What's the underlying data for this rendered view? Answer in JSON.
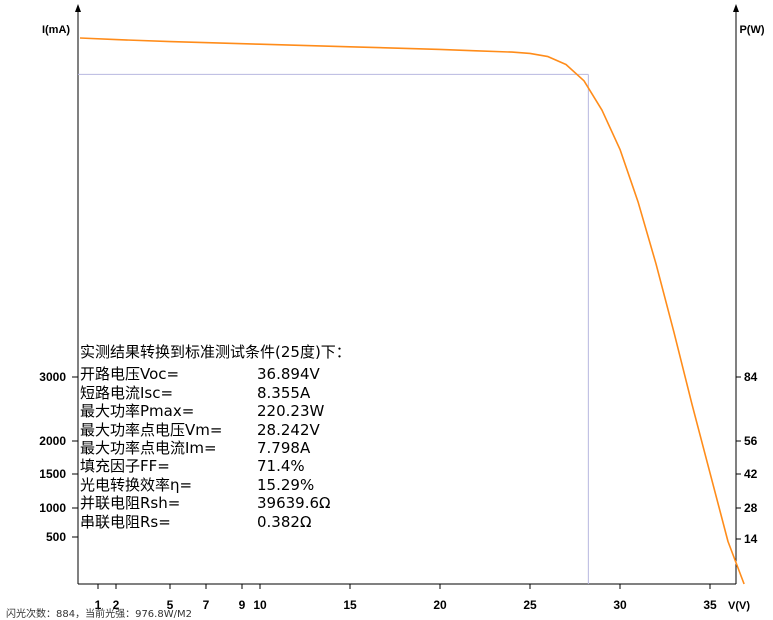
{
  "chart_data": {
    "type": "line",
    "y_left_label": "I(mA)",
    "y_right_label": "P(W)",
    "x_label": "V(V)",
    "x_ticks": [
      1,
      2,
      5,
      7,
      9,
      10,
      15,
      20,
      25,
      30,
      35
    ],
    "y_left_ticks": [
      500,
      1000,
      1500,
      2000,
      3000
    ],
    "y_right_ticks": [
      14,
      28,
      42,
      56,
      84
    ],
    "xlim": [
      0,
      37.2
    ],
    "series": [
      {
        "color": "#ff8c1a",
        "x": [
          0,
          2,
          5,
          10,
          15,
          20,
          22,
          24,
          25,
          26,
          27,
          28,
          29,
          30,
          31,
          32,
          33,
          34,
          35,
          36,
          36.894
        ],
        "y": [
          8355,
          8330,
          8300,
          8260,
          8220,
          8180,
          8160,
          8140,
          8120,
          8070,
          7950,
          7700,
          7250,
          6650,
          5850,
          4900,
          3850,
          2750,
          1700,
          650,
          0
        ]
      }
    ],
    "mpp_marker": {
      "v": 28.242,
      "i_ma": 7798
    },
    "mpp_line_color": "#b8b8e0"
  },
  "results": {
    "heading": "实测结果转换到标准测试条件(25度)下：",
    "rows": [
      {
        "label": "开路电压Voc=",
        "value": "36.894V"
      },
      {
        "label": "短路电流Isc=",
        "value": "8.355A"
      },
      {
        "label": "最大功率Pmax=",
        "value": "220.23W"
      },
      {
        "label": "最大功率点电压Vm=",
        "value": "28.242V"
      },
      {
        "label": "最大功率点电流Im=",
        "value": "7.798A"
      },
      {
        "label": "填充因子FF=",
        "value": "71.4%"
      },
      {
        "label": "光电转换效率η=",
        "value": "15.29%"
      },
      {
        "label": "并联电阻Rsh=",
        "value": "39639.6Ω"
      },
      {
        "label": "串联电阻Rs=",
        "value": "0.382Ω"
      }
    ]
  },
  "status_bar": {
    "text": "闪光次数：884，当前光强：976.8W/M2"
  }
}
